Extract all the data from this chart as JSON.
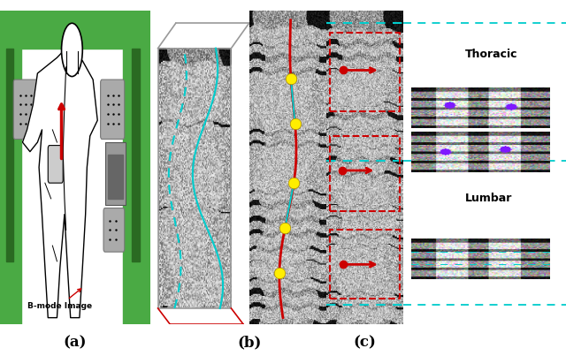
{
  "panel_labels": [
    "(a)",
    "(b)",
    "(c)"
  ],
  "thoracic_label": "Thoracic",
  "lumbar_label": "Lumbar",
  "bmode_label": "B-mode Image",
  "bg_color": "#ffffff",
  "green_color": "#4aaa44",
  "cyan_color": "#00cccc",
  "red_color": "#cc0000",
  "yellow_color": "#ffee00",
  "gray_box_color": "#aaaaaa",
  "dark_gray": "#555555"
}
